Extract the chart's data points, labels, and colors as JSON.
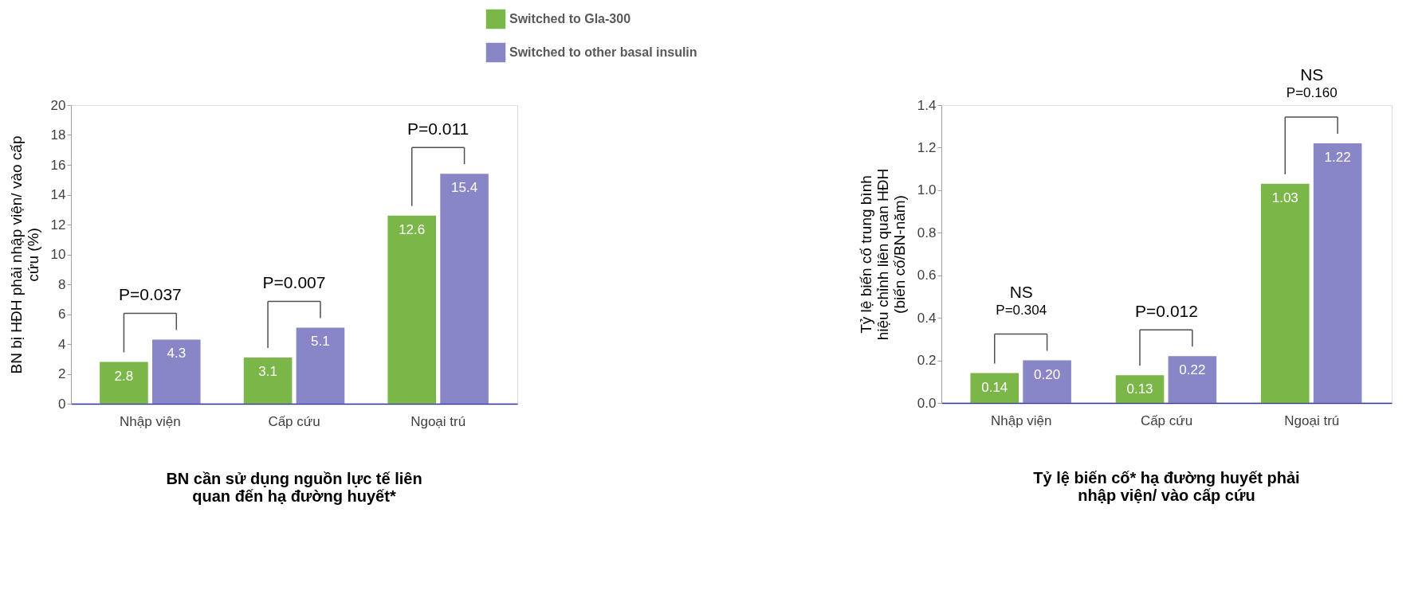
{
  "chart_data": [
    {
      "type": "bar",
      "title": "BN cần sử dụng nguồn lực tế liên\nquan đến hạ đường huyết*",
      "ylabel": "BN bị HĐH phải nhập viện/ vào cấp\ncứu (%)",
      "categories": [
        "Nhập viện",
        "Cấp cứu",
        "Ngoại trú"
      ],
      "series": [
        {
          "name": "Switched to Gla-300",
          "color": "#7ab648",
          "values": [
            2.8,
            3.1,
            12.6
          ]
        },
        {
          "name": "Switched to other basal insulin",
          "color": "#8886c6",
          "values": [
            4.3,
            5.1,
            15.4
          ]
        }
      ],
      "ylim": [
        0,
        20
      ],
      "yticks": [
        0,
        2,
        4,
        6,
        8,
        10,
        12,
        14,
        16,
        18,
        20
      ],
      "data_labels": true,
      "legend": "top",
      "grid": false,
      "annotations": [
        "P=0.037",
        "P=0.007",
        "P=0.011"
      ]
    },
    {
      "type": "bar",
      "title": "Tỷ lệ biến cố* hạ đường huyết phải\nnhập viện/ vào cấp cứu",
      "ylabel": "Tỷ lệ biến cố trung bình\nhiệu chỉnh liên quan HĐH\n(biến cố/BN-năm)",
      "categories": [
        "Nhập viện",
        "Cấp cứu",
        "Ngoại trú"
      ],
      "series": [
        {
          "color": "#7ab648",
          "values": [
            0.14,
            0.13,
            1.03
          ],
          "value_labels": [
            "0.14",
            "0.13",
            "1.03"
          ]
        },
        {
          "color": "#8886c6",
          "values": [
            0.2,
            0.22,
            1.22
          ],
          "value_labels": [
            "0.20",
            "0.22",
            "1.22"
          ]
        }
      ],
      "ylim": [
        0,
        1.4
      ],
      "yticks": [
        {
          "value": 0,
          "label": "0.0"
        },
        0.2,
        0.4,
        0.6,
        0.8,
        {
          "value": 1,
          "label": "1.0"
        },
        1.2,
        1.4
      ],
      "grid": false,
      "annotations": [
        "NS",
        "P=0.304",
        "P=0.012",
        "NS",
        "P=0.160"
      ]
    }
  ]
}
